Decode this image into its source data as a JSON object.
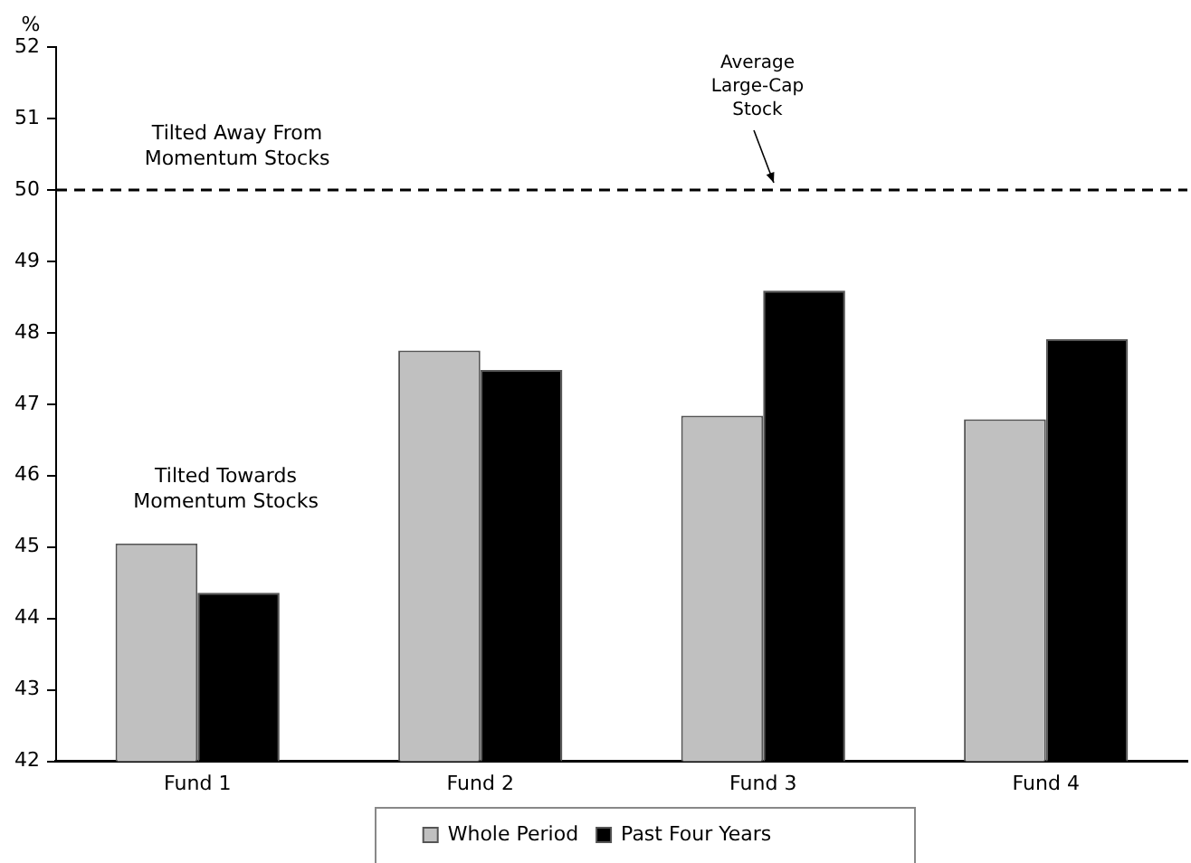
{
  "chart_data": {
    "type": "bar",
    "ylabel": "%",
    "categories": [
      "Fund 1",
      "Fund 2",
      "Fund 3",
      "Fund 4"
    ],
    "series": [
      {
        "name": "Whole Period",
        "color": "#c0c0c0",
        "values": [
          45.05,
          47.75,
          46.84,
          46.79
        ]
      },
      {
        "name": "Past Four Years",
        "color": "#000000",
        "values": [
          44.36,
          47.48,
          48.59,
          47.91
        ]
      }
    ],
    "ylim": [
      42,
      52
    ],
    "yticks": [
      42,
      43,
      44,
      45,
      46,
      47,
      48,
      49,
      50,
      51,
      52
    ],
    "grid": false,
    "legend": "bottom",
    "ref_lines": [
      {
        "axis": "y",
        "value": 50,
        "label": "Average Large-Cap Stock",
        "line_style": "dashed",
        "color": "#000000"
      }
    ],
    "annotations": [
      "Tilted Away From Momentum Stocks",
      "Tilted Towards Momentum Stocks"
    ]
  }
}
